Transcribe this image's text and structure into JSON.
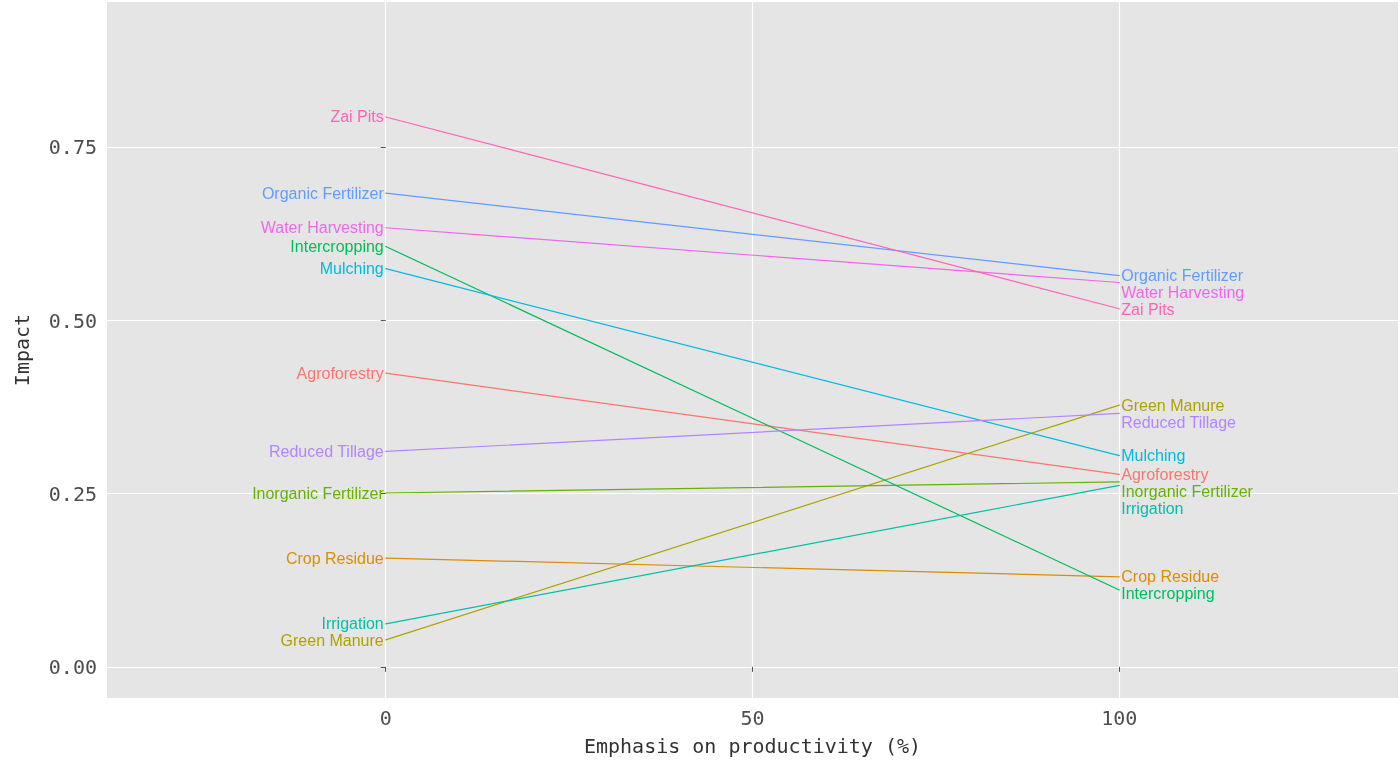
{
  "chart_data": {
    "type": "line",
    "xlabel": "Emphasis on productivity (%)",
    "ylabel": "Impact",
    "x": [
      0,
      100
    ],
    "xlim": [
      -38,
      138
    ],
    "xticks": [
      0,
      50,
      100
    ],
    "ylim": [
      -0.045,
      0.96
    ],
    "yticks": [
      {
        "value": 0,
        "label": "0.00"
      },
      {
        "value": 0.25,
        "label": "0.25"
      },
      {
        "value": 0.5,
        "label": "0.50"
      },
      {
        "value": 0.75,
        "label": "0.75"
      }
    ],
    "grid": true,
    "legend": false,
    "marker": "none",
    "line_style": "solid",
    "series": [
      {
        "name": "Agroforestry",
        "color": "#f8766d",
        "values": [
          0.424,
          0.278
        ]
      },
      {
        "name": "Crop Residue",
        "color": "#db8e00",
        "values": [
          0.157,
          0.13
        ]
      },
      {
        "name": "Green Manure",
        "color": "#aea200",
        "values": [
          0.039,
          0.378
        ]
      },
      {
        "name": "Inorganic Fertilizer",
        "color": "#64b200",
        "values": [
          0.251,
          0.267
        ]
      },
      {
        "name": "Intercropping",
        "color": "#00bd5c",
        "values": [
          0.607,
          0.111
        ]
      },
      {
        "name": "Irrigation",
        "color": "#00c1a7",
        "values": [
          0.062,
          0.262
        ]
      },
      {
        "name": "Mulching",
        "color": "#00bade",
        "values": [
          0.575,
          0.305
        ]
      },
      {
        "name": "Organic Fertilizer",
        "color": "#619cff",
        "values": [
          0.684,
          0.565
        ]
      },
      {
        "name": "Reduced Tillage",
        "color": "#b385ff",
        "values": [
          0.311,
          0.366
        ]
      },
      {
        "name": "Water Harvesting",
        "color": "#ef67eb",
        "values": [
          0.634,
          0.555
        ]
      },
      {
        "name": "Zai Pits",
        "color": "#ff63b6",
        "values": [
          0.794,
          0.517
        ]
      }
    ]
  }
}
